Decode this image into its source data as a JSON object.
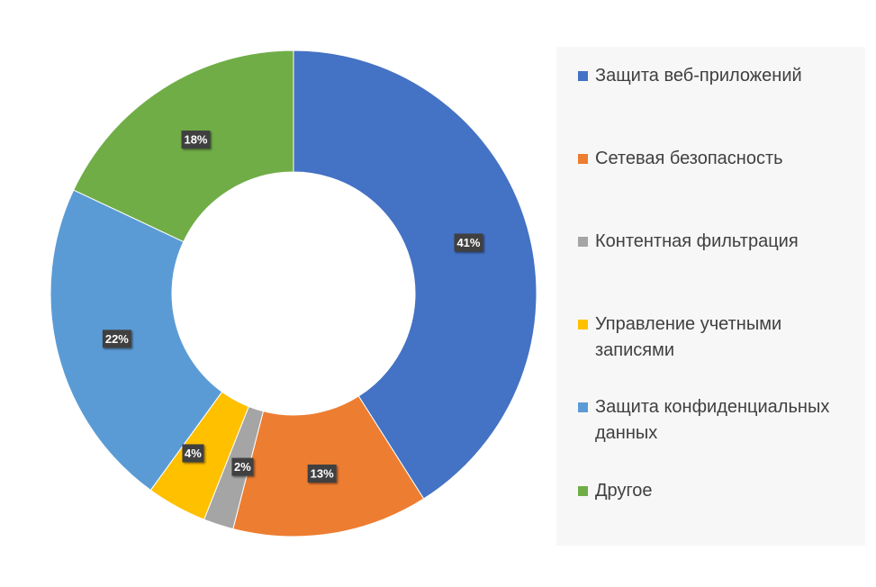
{
  "chart_data": {
    "type": "pie",
    "subtype": "donut",
    "title": "",
    "categories": [
      "Защита веб-приложений",
      "Сетевая безопасность",
      "Контентная фильтрация",
      "Управление учетными записями",
      "Защита конфиденциальных данных",
      "Другое"
    ],
    "values": [
      41,
      13,
      2,
      4,
      22,
      18
    ],
    "data_labels": [
      "41%",
      "13%",
      "2%",
      "4%",
      "22%",
      "18%"
    ],
    "colors": [
      "#4472C4",
      "#ED7D31",
      "#A5A5A5",
      "#FFC000",
      "#5B9BD5",
      "#70AD47"
    ],
    "legend_position": "right",
    "legend": [
      {
        "label": "Защита веб-приложений",
        "color": "#4472C4"
      },
      {
        "label": "Сетевая безопасность",
        "color": "#ED7D31"
      },
      {
        "label": "Контентная фильтрация",
        "color": "#A5A5A5"
      },
      {
        "label": "Управление учетными записями",
        "color": "#FFC000"
      },
      {
        "label": "Защита конфиденциальных данных",
        "color": "#5B9BD5"
      },
      {
        "label": "Другое",
        "color": "#70AD47"
      }
    ]
  }
}
